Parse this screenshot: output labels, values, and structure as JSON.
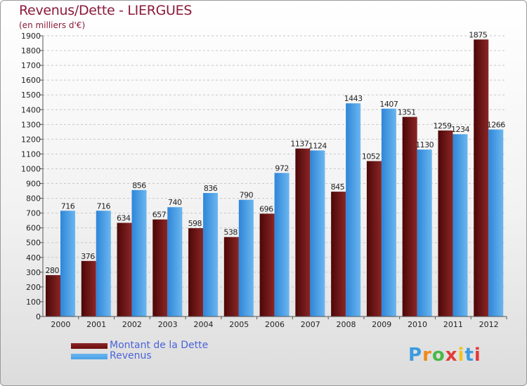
{
  "title": "Revenus/Dette - LIERGUES",
  "subtitle": "(en milliers d'€)",
  "logo_text": "Proxiti",
  "colors": {
    "title": "#8b1a3a",
    "dette": "#6b0d0d",
    "revenus": "#4aa0e6",
    "legend_text": "#4a63d9",
    "grid": "#c8c8c8"
  },
  "chart_data": {
    "type": "bar",
    "title": "Revenus/Dette - LIERGUES",
    "subtitle": "(en milliers d'€)",
    "categories": [
      "2000",
      "2001",
      "2002",
      "2003",
      "2004",
      "2005",
      "2006",
      "2007",
      "2008",
      "2009",
      "2010",
      "2011",
      "2012"
    ],
    "series": [
      {
        "name": "Montant de la Dette",
        "values": [
          280,
          376,
          634,
          657,
          598,
          538,
          696,
          1137,
          845,
          1052,
          1351,
          1259,
          1875
        ]
      },
      {
        "name": "Revenus",
        "values": [
          716,
          716,
          856,
          740,
          836,
          790,
          972,
          1124,
          1443,
          1407,
          1130,
          1234,
          1266
        ]
      }
    ],
    "ylim": [
      0,
      1900
    ],
    "ytick_step": 100,
    "grid": true,
    "legend_position": "bottom-left"
  }
}
